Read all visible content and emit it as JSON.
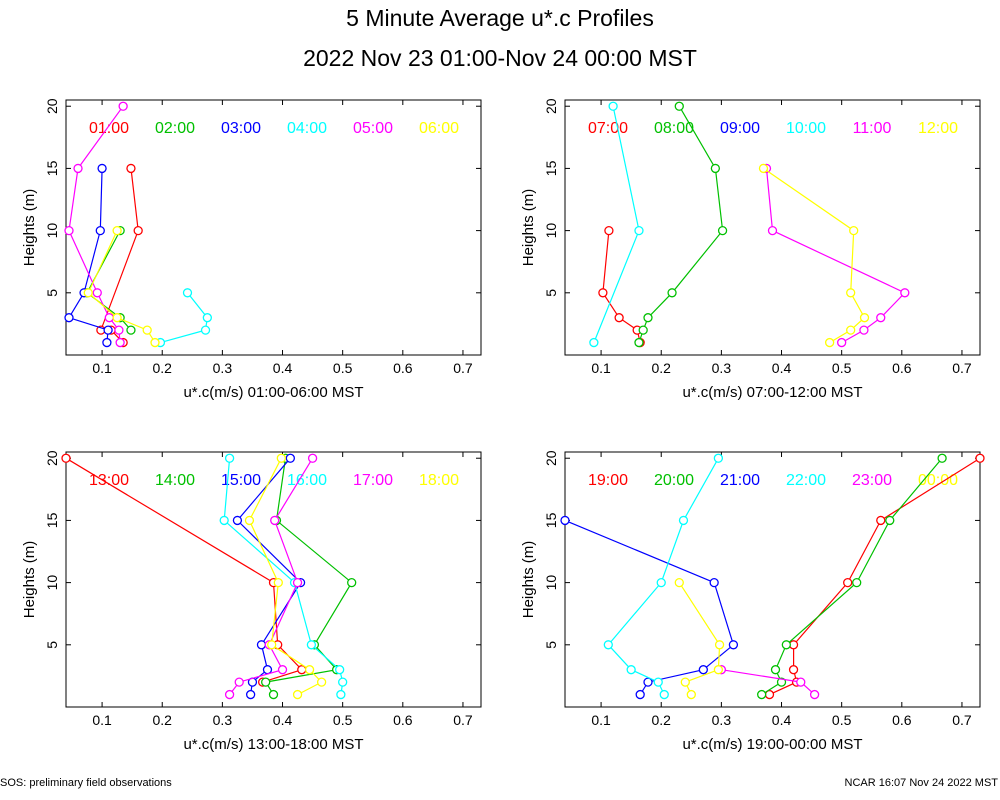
{
  "header": {
    "title": "5 Minute Average u*.c Profiles",
    "subtitle": "2022 Nov 23 01:00-Nov 24 00:00 MST"
  },
  "footer": {
    "left": "SOS: preliminary field observations",
    "right": "NCAR 16:07 Nov 24 2022 MST"
  },
  "colors": [
    "#ff0000",
    "#00c000",
    "#0000ff",
    "#00ffff",
    "#ff00ff",
    "#ffff00"
  ],
  "chart_data": [
    {
      "type": "line",
      "xlabel": "u*.c(m/s) 01:00-06:00 MST",
      "ylabel": "Heights (m)",
      "xlim": [
        0.04,
        0.73
      ],
      "ylim": [
        0,
        20.5
      ],
      "xticks": [
        "0.1",
        "0.2",
        "0.3",
        "0.4",
        "0.5",
        "0.6",
        "0.7"
      ],
      "yticks": [
        "5",
        "10",
        "15",
        "20"
      ],
      "series": [
        {
          "name": "01:00",
          "points": [
            [
              0.135,
              1
            ],
            [
              0.115,
              2
            ],
            [
              0.098,
              2
            ],
            [
              0.16,
              10
            ],
            [
              0.148,
              15
            ]
          ]
        },
        {
          "name": "02:00",
          "points": [
            [
              0.148,
              2
            ],
            [
              0.13,
              3
            ],
            [
              0.075,
              5
            ],
            [
              0.13,
              10
            ]
          ]
        },
        {
          "name": "03:00",
          "points": [
            [
              0.108,
              1
            ],
            [
              0.11,
              2
            ],
            [
              0.045,
              3
            ],
            [
              0.07,
              5
            ],
            [
              0.097,
              10
            ],
            [
              0.1,
              15
            ]
          ]
        },
        {
          "name": "04:00",
          "points": [
            [
              0.197,
              1
            ],
            [
              0.272,
              2
            ],
            [
              0.275,
              3
            ],
            [
              0.242,
              5
            ]
          ]
        },
        {
          "name": "05:00",
          "points": [
            [
              0.13,
              1
            ],
            [
              0.128,
              2
            ],
            [
              0.112,
              3
            ],
            [
              0.092,
              5
            ],
            [
              0.045,
              10
            ],
            [
              0.06,
              15
            ],
            [
              0.135,
              20
            ]
          ]
        },
        {
          "name": "06:00",
          "points": [
            [
              0.188,
              1
            ],
            [
              0.175,
              2
            ],
            [
              0.125,
              3
            ],
            [
              0.077,
              5
            ],
            [
              0.125,
              10
            ]
          ]
        }
      ]
    },
    {
      "type": "line",
      "xlabel": "u*.c(m/s) 07:00-12:00 MST",
      "ylabel": "Heights (m)",
      "xlim": [
        0.04,
        0.73
      ],
      "ylim": [
        0,
        20.5
      ],
      "xticks": [
        "0.1",
        "0.2",
        "0.3",
        "0.4",
        "0.5",
        "0.6",
        "0.7"
      ],
      "yticks": [
        "5",
        "10",
        "15",
        "20"
      ],
      "series": [
        {
          "name": "07:00",
          "points": [
            [
              0.165,
              1
            ],
            [
              0.16,
              2
            ],
            [
              0.13,
              3
            ],
            [
              0.103,
              5
            ],
            [
              0.113,
              10
            ]
          ]
        },
        {
          "name": "08:00",
          "points": [
            [
              0.163,
              1
            ],
            [
              0.17,
              2
            ],
            [
              0.178,
              3
            ],
            [
              0.218,
              5
            ],
            [
              0.302,
              10
            ],
            [
              0.29,
              15
            ],
            [
              0.23,
              20
            ]
          ]
        },
        {
          "name": "09:00",
          "points": []
        },
        {
          "name": "10:00",
          "points": [
            [
              0.088,
              1
            ],
            [
              0.163,
              10
            ],
            [
              0.12,
              20
            ]
          ]
        },
        {
          "name": "11:00",
          "points": [
            [
              0.5,
              1
            ],
            [
              0.537,
              2
            ],
            [
              0.565,
              3
            ],
            [
              0.605,
              5
            ],
            [
              0.385,
              10
            ],
            [
              0.375,
              15
            ]
          ]
        },
        {
          "name": "12:00",
          "points": [
            [
              0.48,
              1
            ],
            [
              0.515,
              2
            ],
            [
              0.538,
              3
            ],
            [
              0.515,
              5
            ],
            [
              0.52,
              10
            ],
            [
              0.37,
              15
            ]
          ]
        }
      ]
    },
    {
      "type": "line",
      "xlabel": "u*.c(m/s) 13:00-18:00 MST",
      "ylabel": "Heights (m)",
      "xlim": [
        0.04,
        0.73
      ],
      "ylim": [
        0,
        20.5
      ],
      "xticks": [
        "0.1",
        "0.2",
        "0.3",
        "0.4",
        "0.5",
        "0.6",
        "0.7"
      ],
      "yticks": [
        "5",
        "10",
        "15",
        "20"
      ],
      "series": [
        {
          "name": "13:00",
          "points": [
            [
              0.367,
              2
            ],
            [
              0.432,
              3
            ],
            [
              0.392,
              5
            ],
            [
              0.385,
              10
            ],
            [
              0.04,
              20
            ]
          ]
        },
        {
          "name": "14:00",
          "points": [
            [
              0.385,
              1
            ],
            [
              0.372,
              2
            ],
            [
              0.49,
              3
            ],
            [
              0.453,
              5
            ],
            [
              0.515,
              10
            ],
            [
              0.39,
              15
            ],
            [
              0.405,
              20
            ]
          ]
        },
        {
          "name": "15:00",
          "points": [
            [
              0.347,
              1
            ],
            [
              0.35,
              2
            ],
            [
              0.375,
              3
            ],
            [
              0.365,
              5
            ],
            [
              0.43,
              10
            ],
            [
              0.325,
              15
            ],
            [
              0.413,
              20
            ]
          ]
        },
        {
          "name": "16:00",
          "points": [
            [
              0.497,
              1
            ],
            [
              0.5,
              2
            ],
            [
              0.495,
              3
            ],
            [
              0.448,
              5
            ],
            [
              0.42,
              10
            ],
            [
              0.303,
              15
            ],
            [
              0.312,
              20
            ]
          ]
        },
        {
          "name": "17:00",
          "points": [
            [
              0.312,
              1
            ],
            [
              0.328,
              2
            ],
            [
              0.4,
              3
            ],
            [
              0.378,
              5
            ],
            [
              0.425,
              10
            ],
            [
              0.387,
              15
            ],
            [
              0.45,
              20
            ]
          ]
        },
        {
          "name": "18:00",
          "points": [
            [
              0.425,
              1
            ],
            [
              0.465,
              2
            ],
            [
              0.445,
              3
            ],
            [
              0.382,
              5
            ],
            [
              0.393,
              10
            ],
            [
              0.345,
              15
            ],
            [
              0.398,
              20
            ]
          ]
        }
      ]
    },
    {
      "type": "line",
      "xlabel": "u*.c(m/s) 19:00-00:00 MST",
      "ylabel": "Heights (m)",
      "xlim": [
        0.04,
        0.73
      ],
      "ylim": [
        0,
        20.5
      ],
      "xticks": [
        "0.1",
        "0.2",
        "0.3",
        "0.4",
        "0.5",
        "0.6",
        "0.7"
      ],
      "yticks": [
        "5",
        "10",
        "15",
        "20"
      ],
      "series": [
        {
          "name": "19:00",
          "points": [
            [
              0.38,
              1
            ],
            [
              0.425,
              2
            ],
            [
              0.42,
              3
            ],
            [
              0.42,
              5
            ],
            [
              0.51,
              10
            ],
            [
              0.565,
              15
            ],
            [
              0.73,
              20
            ]
          ]
        },
        {
          "name": "20:00",
          "points": [
            [
              0.367,
              1
            ],
            [
              0.4,
              2
            ],
            [
              0.39,
              3
            ],
            [
              0.408,
              5
            ],
            [
              0.525,
              10
            ],
            [
              0.58,
              15
            ],
            [
              0.667,
              20
            ]
          ]
        },
        {
          "name": "21:00",
          "points": [
            [
              0.165,
              1
            ],
            [
              0.178,
              2
            ],
            [
              0.27,
              3
            ],
            [
              0.32,
              5
            ],
            [
              0.288,
              10
            ],
            [
              0.04,
              15
            ]
          ]
        },
        {
          "name": "22:00",
          "points": [
            [
              0.205,
              1
            ],
            [
              0.195,
              2
            ],
            [
              0.15,
              3
            ],
            [
              0.112,
              5
            ],
            [
              0.2,
              10
            ],
            [
              0.237,
              15
            ],
            [
              0.295,
              20
            ]
          ]
        },
        {
          "name": "23:00",
          "points": [
            [
              0.455,
              1
            ],
            [
              0.432,
              2
            ],
            [
              0.3,
              3
            ]
          ]
        },
        {
          "name": "00:00",
          "points": [
            [
              0.25,
              1
            ],
            [
              0.24,
              2
            ],
            [
              0.295,
              3
            ],
            [
              0.297,
              5
            ],
            [
              0.23,
              10
            ]
          ]
        }
      ]
    }
  ]
}
